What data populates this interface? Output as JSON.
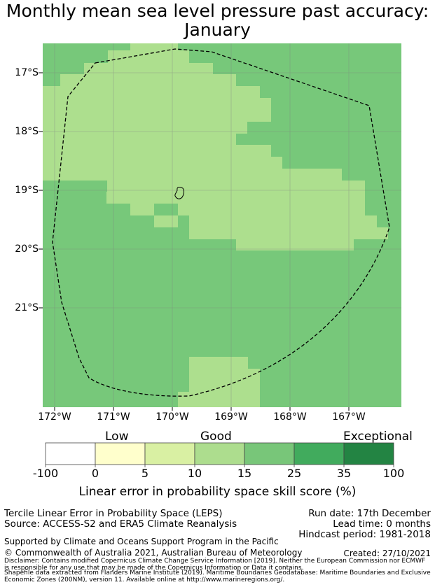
{
  "title": {
    "line1": "Monthly mean sea level pressure past accuracy:",
    "line2": "January"
  },
  "map": {
    "lat_labels": [
      "17°S",
      "18°S",
      "19°S",
      "20°S",
      "21°S"
    ],
    "lon_labels": [
      "172°W",
      "171°W",
      "170°W",
      "169°W",
      "168°W",
      "167°W"
    ],
    "colors": {
      "good_15_25": "#77c87a",
      "good_10_15": "#addf8e",
      "boundary": "#000000",
      "grid": "#808080"
    }
  },
  "colorbar": {
    "categories": {
      "low": "Low",
      "good": "Good",
      "exceptional": "Exceptional"
    },
    "ticks": [
      "-100",
      "0",
      "5",
      "10",
      "15",
      "25",
      "35",
      "100"
    ],
    "colors": [
      "#ffffff",
      "#ffffcc",
      "#d9f0a3",
      "#addd8e",
      "#78c679",
      "#41ab5d",
      "#238443"
    ],
    "xlabel": "Linear error in probability space skill score (%)"
  },
  "footer": {
    "method": "Tercile Linear Error in Probability Space (LEPS)",
    "source": "Source: ACCESS-S2 and ERA5 Climate Reanalysis",
    "run_date": "Run date: 17th December",
    "lead_time": "Lead time: 0 months",
    "hindcast": "Hindcast period: 1981-2018",
    "supported": "Supported by Climate and Oceans Support Program in the Pacific",
    "copyright": "© Commonwealth of Australia 2021, Australian Bureau of Meteorology",
    "created": "Created: 27/10/2021",
    "disclaimer": "Disclaimer: Contains modified Copernicus Climate Change Service Information [2019]. Neither the European Commission nor ECMWF is responsible for any use that may be made of the Copernicus Information or Data it contains.",
    "shapefile": "Shapefile data extracted from Flanders Marine Institute (2019). Maritime Boundaries Geodatabase: Maritime Boundaries and Exclusive Economic Zones (200NM), version 11. Available online at http://www.marineregions.org/."
  }
}
